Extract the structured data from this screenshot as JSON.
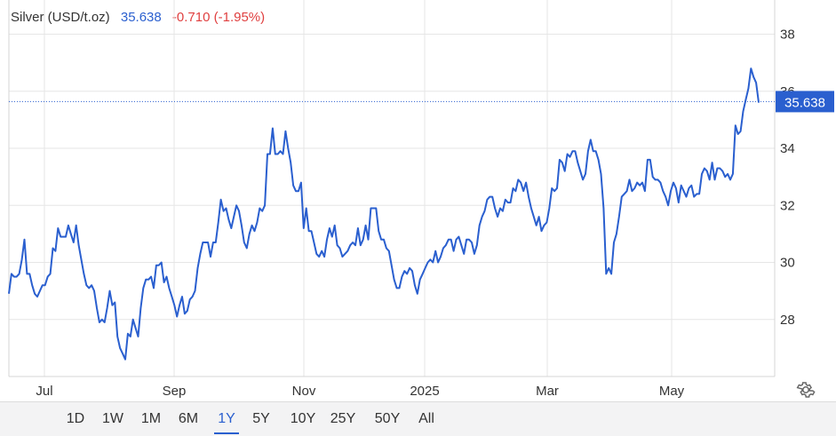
{
  "header": {
    "instrument": "Silver (USD/t.oz)",
    "price": "35.638",
    "change": "-0.710 (-1.95%)"
  },
  "price_label": "35.638",
  "ranges": [
    "1D",
    "1W",
    "1M",
    "6M",
    "1Y",
    "5Y",
    "10Y",
    "25Y",
    "50Y",
    "All"
  ],
  "active_range": "1Y",
  "colors": {
    "line": "#2a5fcf",
    "down": "#e04040",
    "grid": "#e6e6e6"
  },
  "chart_data": {
    "type": "line",
    "x_ticks": [
      "Jul",
      "Sep",
      "Nov",
      "2025",
      "Mar",
      "May"
    ],
    "y_ticks": [
      28,
      30,
      32,
      34,
      36,
      38
    ],
    "ylim": [
      26,
      39.2
    ],
    "last_value": 35.638,
    "series": [
      {
        "values": [
          28.9,
          29.6,
          29.5,
          29.5,
          29.6,
          30.1,
          30.8,
          29.6,
          29.6,
          29.2,
          28.9,
          28.8,
          29.0,
          29.2,
          29.2,
          29.5,
          29.6,
          30.5,
          30.4,
          31.2,
          30.9,
          30.9,
          30.9,
          31.3,
          31.0,
          30.7,
          31.3,
          30.6,
          30.1,
          29.6,
          29.2,
          29.1,
          29.2,
          29.0,
          28.4,
          27.9,
          28.0,
          27.9,
          28.4,
          29.0,
          28.5,
          28.6,
          27.4,
          27.0,
          26.8,
          26.6,
          27.5,
          27.4,
          28.0,
          27.7,
          27.4,
          28.4,
          29.1,
          29.4,
          29.4,
          29.5,
          29.1,
          29.9,
          29.9,
          30.0,
          29.3,
          29.5,
          29.1,
          28.8,
          28.5,
          28.1,
          28.5,
          28.8,
          28.2,
          28.3,
          28.7,
          28.8,
          29.0,
          29.8,
          30.3,
          30.7,
          30.7,
          30.7,
          30.2,
          30.7,
          30.7,
          31.4,
          32.2,
          31.8,
          31.9,
          31.5,
          31.2,
          31.6,
          32.0,
          31.8,
          31.3,
          30.7,
          30.5,
          31.0,
          31.3,
          31.1,
          31.4,
          31.9,
          31.8,
          32.0,
          33.8,
          33.8,
          34.7,
          33.8,
          33.8,
          33.9,
          33.8,
          34.6,
          34.0,
          33.5,
          32.7,
          32.5,
          32.5,
          32.8,
          31.2,
          31.9,
          31.1,
          31.1,
          30.7,
          30.3,
          30.2,
          30.4,
          30.2,
          30.8,
          31.2,
          30.9,
          31.3,
          30.6,
          30.5,
          30.2,
          30.3,
          30.4,
          30.6,
          30.7,
          30.6,
          31.2,
          30.6,
          30.8,
          31.3,
          30.8,
          31.9,
          31.9,
          31.9,
          31.1,
          30.8,
          30.8,
          30.5,
          30.4,
          29.9,
          29.4,
          29.1,
          29.1,
          29.5,
          29.7,
          29.6,
          29.8,
          29.7,
          29.2,
          28.9,
          29.4,
          29.6,
          29.8,
          30.0,
          30.1,
          30.0,
          30.4,
          30.0,
          30.2,
          30.5,
          30.6,
          30.8,
          30.8,
          30.4,
          30.8,
          30.9,
          30.6,
          30.3,
          30.8,
          30.8,
          30.7,
          30.3,
          30.6,
          31.3,
          31.6,
          31.8,
          32.2,
          32.3,
          32.3,
          31.9,
          31.6,
          31.9,
          31.8,
          32.2,
          32.1,
          32.1,
          32.6,
          32.5,
          32.9,
          32.8,
          32.5,
          32.8,
          32.3,
          31.9,
          31.6,
          31.3,
          31.6,
          31.1,
          31.3,
          31.4,
          31.9,
          32.6,
          32.5,
          32.6,
          33.6,
          33.5,
          33.2,
          33.8,
          33.7,
          33.9,
          33.9,
          33.5,
          33.2,
          32.9,
          33.1,
          33.9,
          34.3,
          33.9,
          33.9,
          33.6,
          33.1,
          31.9,
          29.6,
          29.8,
          29.6,
          30.7,
          31.0,
          31.6,
          32.3,
          32.4,
          32.5,
          32.9,
          32.5,
          32.6,
          32.8,
          32.7,
          32.8,
          32.5,
          33.6,
          33.6,
          33.0,
          32.9,
          32.9,
          32.8,
          32.5,
          32.3,
          32.0,
          32.5,
          32.8,
          32.6,
          32.1,
          32.7,
          32.5,
          32.3,
          32.6,
          32.7,
          32.3,
          32.4,
          32.4,
          33.1,
          33.3,
          33.2,
          32.9,
          33.5,
          32.9,
          33.3,
          33.3,
          33.2,
          33.0,
          33.1,
          32.9,
          33.1,
          34.8,
          34.5,
          34.6,
          35.3,
          35.7,
          36.1,
          36.8,
          36.5,
          36.3,
          35.6
        ]
      }
    ]
  }
}
